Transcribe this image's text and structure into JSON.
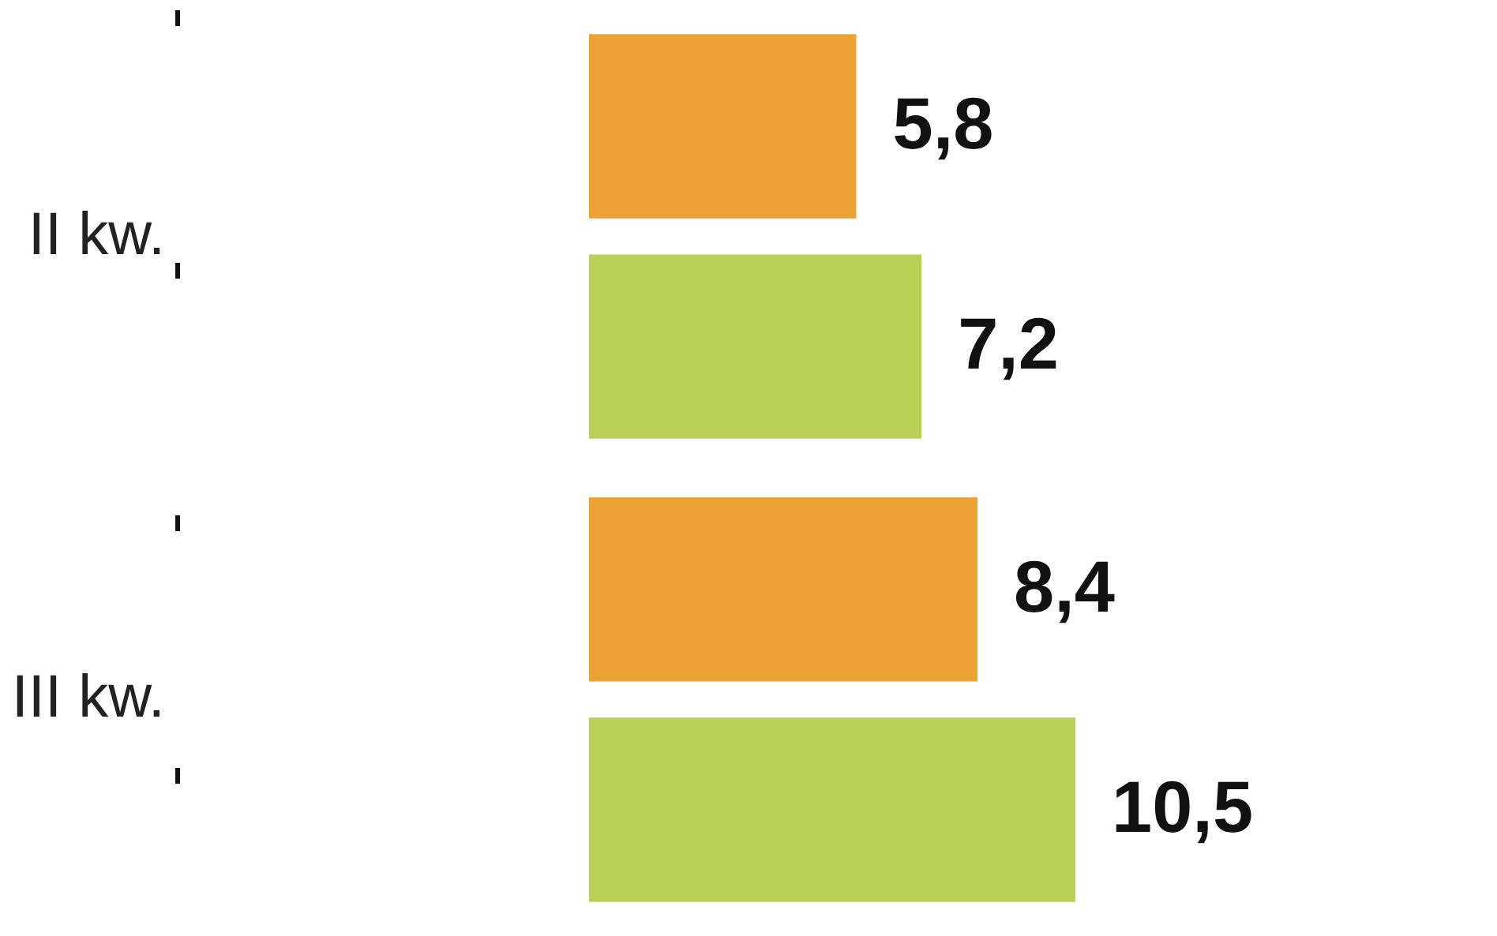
{
  "chart_data": {
    "type": "bar",
    "orientation": "horizontal",
    "categories": [
      "II kw.",
      "III kw."
    ],
    "series": [
      {
        "color": "#eda235",
        "values": [
          5.8,
          8.4
        ],
        "value_labels": [
          "5,8",
          "8,4"
        ]
      },
      {
        "color": "#b9cf55",
        "values": [
          7.2,
          10.5
        ],
        "value_labels": [
          "7,2",
          "10,5"
        ]
      }
    ],
    "tick_labels": "y"
  }
}
